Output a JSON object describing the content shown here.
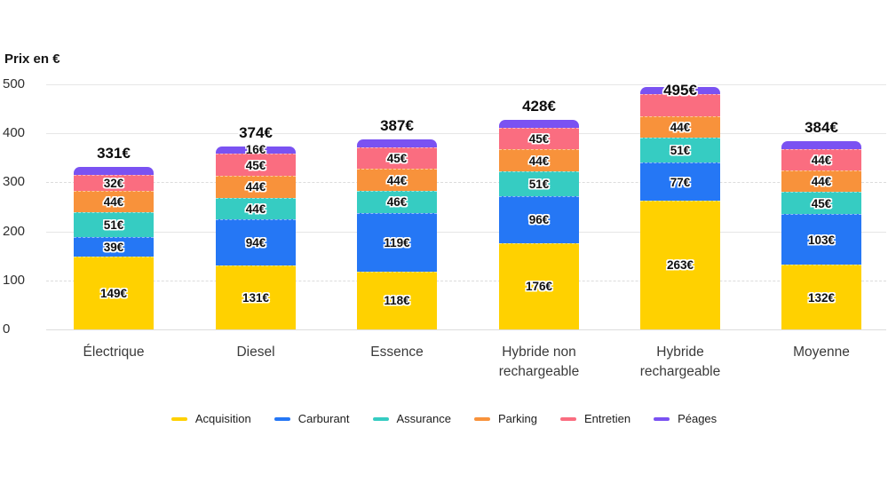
{
  "chart_data": {
    "type": "bar",
    "stacked": true,
    "title": "Prix en €",
    "unit": "€",
    "categories": [
      "Électrique",
      "Diesel",
      "Essence",
      "Hybride non rechargeable",
      "Hybride rechargeable",
      "Moyenne"
    ],
    "totals": [
      "331€",
      "374€",
      "387€",
      "428€",
      "495€",
      "384€"
    ],
    "y_ticks": [
      0,
      100,
      200,
      300,
      400,
      500
    ],
    "ylim": [
      0,
      500
    ],
    "grid": "horizontal",
    "legend_position": "bottom",
    "series": [
      {
        "name": "Acquisition",
        "color": "#FFD100",
        "values": [
          149,
          131,
          118,
          176,
          263,
          132
        ],
        "labels": [
          "149€",
          "131€",
          "118€",
          "176€",
          "263€",
          "132€"
        ]
      },
      {
        "name": "Carburant",
        "color": "#2577F5",
        "values": [
          39,
          94,
          119,
          96,
          77,
          103
        ],
        "labels": [
          "39€",
          "94€",
          "119€",
          "96€",
          "77€",
          "103€"
        ]
      },
      {
        "name": "Assurance",
        "color": "#36CCC2",
        "values": [
          51,
          44,
          46,
          51,
          51,
          45
        ],
        "labels": [
          "51€",
          "44€",
          "46€",
          "51€",
          "51€",
          "45€"
        ]
      },
      {
        "name": "Parking",
        "color": "#F8923B",
        "values": [
          44,
          44,
          44,
          44,
          44,
          44
        ],
        "labels": [
          "44€",
          "44€",
          "44€",
          "44€",
          "44€",
          "44€"
        ]
      },
      {
        "name": "Entretien",
        "color": "#FA6D80",
        "values": [
          32,
          45,
          45,
          45,
          45,
          44
        ],
        "labels": [
          "32€",
          "45€",
          "45€",
          "45€",
          null,
          "44€"
        ]
      },
      {
        "name": "Péages",
        "color": "#7A52F2",
        "values": [
          16,
          16,
          15,
          16,
          15,
          16
        ],
        "labels": [
          null,
          "16€",
          null,
          null,
          null,
          null
        ]
      }
    ]
  }
}
